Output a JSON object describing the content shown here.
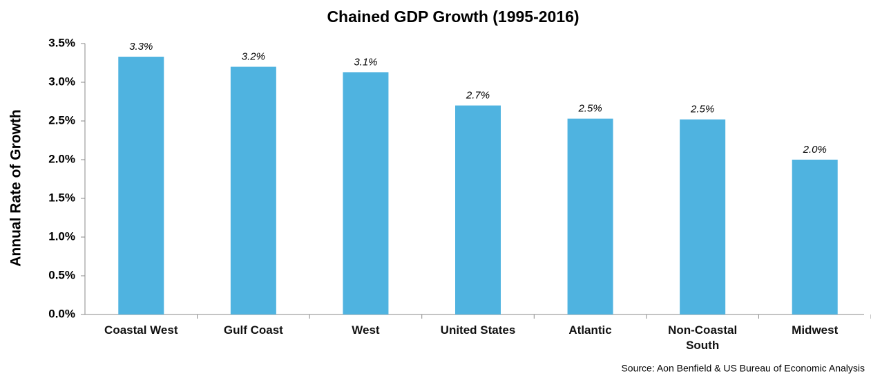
{
  "chart_data": {
    "type": "bar",
    "title": "Chained GDP Growth (1995-2016)",
    "y_label": "Annual Rate of Growth",
    "source": "Source: Aon Benfield & US Bureau of Economic Analysis",
    "categories": [
      "Coastal West",
      "Gulf Coast",
      "West",
      "United States",
      "Atlantic",
      "Non-Coastal South",
      "Midwest"
    ],
    "values": [
      3.33,
      3.2,
      3.13,
      2.7,
      2.53,
      2.52,
      2.0
    ],
    "value_labels": [
      "3.3%",
      "3.2%",
      "3.1%",
      "2.7%",
      "2.5%",
      "2.5%",
      "2.0%"
    ],
    "color": "#4fb3e0",
    "ylim": [
      0,
      3.5
    ],
    "yticks": [
      {
        "value": 0,
        "label": "0.0%"
      },
      {
        "value": 0.5,
        "label": "0.5%"
      },
      {
        "value": 1,
        "label": "1.0%"
      },
      {
        "value": 1.5,
        "label": "1.5%"
      },
      {
        "value": 2,
        "label": "2.0%"
      },
      {
        "value": 2.5,
        "label": "2.5%"
      },
      {
        "value": 3,
        "label": "3.0%"
      },
      {
        "value": 3.5,
        "label": "3.5%"
      }
    ],
    "grid": false
  }
}
